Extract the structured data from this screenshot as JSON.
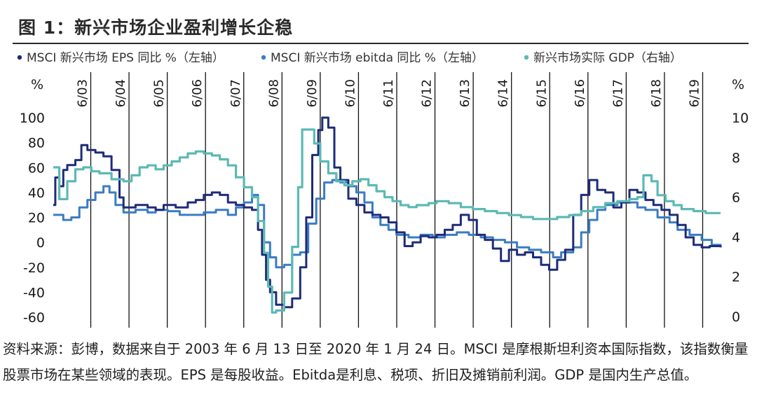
{
  "title": "图 1：新兴市场企业盈利增长企稳",
  "caption": "资料来源：彭博，数据来自于 2003 年 6 月 13 日至 2020 年 1 月 24 日。MSCI 是摩根斯坦利资本国际指数，该指数衡量股票市场在某些领域的表现。EPS 是每股收益。Ebitda是利息、税项、折旧及摊销前利润。GDP 是国内生产总值。",
  "chart_data": {
    "type": "line",
    "title": "图 1：新兴市场企业盈利增长企稳",
    "left_axis": {
      "unit": "%",
      "ticks": [
        100,
        80,
        60,
        40,
        20,
        0,
        -20,
        -40,
        -60
      ],
      "range": [
        -60,
        100
      ]
    },
    "right_axis": {
      "unit": "%",
      "ticks": [
        10,
        8,
        6,
        4,
        2,
        0
      ],
      "range": [
        0,
        10
      ]
    },
    "period_labels": [
      "6/03",
      "6/04",
      "6/05",
      "6/06",
      "6/07",
      "6/08",
      "6/09",
      "6/10",
      "6/11",
      "6/12",
      "6/13",
      "6/14",
      "6/15",
      "6/16",
      "6/17",
      "6/18",
      "6/19"
    ],
    "x_range": [
      2003.45,
      2020.07
    ],
    "series": [
      {
        "name": "MSCI 新兴市场 EPS 同比 %（左轴）",
        "axis": "left",
        "color": "#1e2c78",
        "points": [
          [
            2003.45,
            30
          ],
          [
            2003.5,
            52
          ],
          [
            2003.6,
            45
          ],
          [
            2003.7,
            58
          ],
          [
            2003.8,
            62
          ],
          [
            2004.0,
            66
          ],
          [
            2004.15,
            78
          ],
          [
            2004.3,
            74
          ],
          [
            2004.5,
            72
          ],
          [
            2004.7,
            69
          ],
          [
            2004.9,
            58
          ],
          [
            2005.1,
            36
          ],
          [
            2005.2,
            28
          ],
          [
            2005.5,
            30
          ],
          [
            2005.8,
            28
          ],
          [
            2006.0,
            26
          ],
          [
            2006.2,
            30
          ],
          [
            2006.5,
            28
          ],
          [
            2006.8,
            32
          ],
          [
            2007.0,
            34
          ],
          [
            2007.2,
            38
          ],
          [
            2007.4,
            40
          ],
          [
            2007.6,
            38
          ],
          [
            2007.8,
            32
          ],
          [
            2008.0,
            30
          ],
          [
            2008.2,
            28
          ],
          [
            2008.4,
            26
          ],
          [
            2008.55,
            10
          ],
          [
            2008.65,
            -10
          ],
          [
            2008.75,
            -30
          ],
          [
            2008.85,
            -40
          ],
          [
            2009.0,
            -50
          ],
          [
            2009.2,
            -52
          ],
          [
            2009.4,
            -45
          ],
          [
            2009.6,
            -20
          ],
          [
            2009.75,
            20
          ],
          [
            2009.9,
            70
          ],
          [
            2010.05,
            90
          ],
          [
            2010.15,
            100
          ],
          [
            2010.3,
            92
          ],
          [
            2010.45,
            60
          ],
          [
            2010.6,
            50
          ],
          [
            2010.8,
            35
          ],
          [
            2011.0,
            30
          ],
          [
            2011.2,
            24
          ],
          [
            2011.4,
            22
          ],
          [
            2011.6,
            20
          ],
          [
            2011.8,
            16
          ],
          [
            2012.0,
            8
          ],
          [
            2012.2,
            -3
          ],
          [
            2012.4,
            0
          ],
          [
            2012.6,
            5
          ],
          [
            2012.8,
            4
          ],
          [
            2013.0,
            6
          ],
          [
            2013.2,
            10
          ],
          [
            2013.4,
            14
          ],
          [
            2013.6,
            22
          ],
          [
            2013.8,
            18
          ],
          [
            2014.0,
            6
          ],
          [
            2014.2,
            2
          ],
          [
            2014.4,
            -5
          ],
          [
            2014.6,
            -15
          ],
          [
            2014.8,
            -6
          ],
          [
            2015.0,
            -10
          ],
          [
            2015.2,
            -8
          ],
          [
            2015.4,
            -12
          ],
          [
            2015.6,
            -18
          ],
          [
            2015.8,
            -22
          ],
          [
            2016.0,
            -14
          ],
          [
            2016.2,
            -6
          ],
          [
            2016.4,
            22
          ],
          [
            2016.6,
            38
          ],
          [
            2016.8,
            50
          ],
          [
            2017.0,
            42
          ],
          [
            2017.2,
            40
          ],
          [
            2017.4,
            28
          ],
          [
            2017.6,
            32
          ],
          [
            2017.8,
            42
          ],
          [
            2018.0,
            40
          ],
          [
            2018.2,
            34
          ],
          [
            2018.4,
            30
          ],
          [
            2018.6,
            26
          ],
          [
            2018.8,
            22
          ],
          [
            2019.0,
            14
          ],
          [
            2019.2,
            4
          ],
          [
            2019.4,
            -2
          ],
          [
            2019.6,
            -4
          ],
          [
            2019.8,
            -3
          ],
          [
            2020.07,
            -4
          ]
        ]
      },
      {
        "name": "MSCI 新兴市场 ebitda 同比 %（左轴）",
        "axis": "left",
        "color": "#3b7cc2",
        "points": [
          [
            2003.45,
            22
          ],
          [
            2003.7,
            18
          ],
          [
            2003.9,
            20
          ],
          [
            2004.1,
            28
          ],
          [
            2004.3,
            34
          ],
          [
            2004.5,
            40
          ],
          [
            2004.7,
            45
          ],
          [
            2004.85,
            40
          ],
          [
            2005.0,
            30
          ],
          [
            2005.2,
            24
          ],
          [
            2005.5,
            26
          ],
          [
            2005.8,
            24
          ],
          [
            2006.0,
            26
          ],
          [
            2006.3,
            25
          ],
          [
            2006.6,
            22
          ],
          [
            2006.9,
            22
          ],
          [
            2007.2,
            24
          ],
          [
            2007.5,
            26
          ],
          [
            2007.8,
            22
          ],
          [
            2008.0,
            28
          ],
          [
            2008.2,
            32
          ],
          [
            2008.4,
            38
          ],
          [
            2008.55,
            30
          ],
          [
            2008.7,
            0
          ],
          [
            2008.85,
            -12
          ],
          [
            2009.0,
            -20
          ],
          [
            2009.2,
            -18
          ],
          [
            2009.4,
            -10
          ],
          [
            2009.6,
            -8
          ],
          [
            2009.8,
            15
          ],
          [
            2010.0,
            35
          ],
          [
            2010.2,
            48
          ],
          [
            2010.4,
            50
          ],
          [
            2010.6,
            48
          ],
          [
            2010.8,
            45
          ],
          [
            2011.0,
            40
          ],
          [
            2011.2,
            32
          ],
          [
            2011.4,
            20
          ],
          [
            2011.6,
            14
          ],
          [
            2011.8,
            10
          ],
          [
            2012.0,
            6
          ],
          [
            2012.3,
            4
          ],
          [
            2012.6,
            6
          ],
          [
            2012.9,
            4
          ],
          [
            2013.2,
            6
          ],
          [
            2013.5,
            8
          ],
          [
            2013.8,
            6
          ],
          [
            2014.1,
            4
          ],
          [
            2014.4,
            2
          ],
          [
            2014.7,
            0
          ],
          [
            2015.0,
            -4
          ],
          [
            2015.3,
            -6
          ],
          [
            2015.6,
            -8
          ],
          [
            2015.9,
            -12
          ],
          [
            2016.1,
            -8
          ],
          [
            2016.4,
            -4
          ],
          [
            2016.6,
            8
          ],
          [
            2016.8,
            18
          ],
          [
            2017.0,
            26
          ],
          [
            2017.2,
            30
          ],
          [
            2017.5,
            32
          ],
          [
            2017.8,
            32
          ],
          [
            2018.0,
            28
          ],
          [
            2018.2,
            26
          ],
          [
            2018.5,
            20
          ],
          [
            2018.8,
            16
          ],
          [
            2019.0,
            10
          ],
          [
            2019.3,
            6
          ],
          [
            2019.6,
            2
          ],
          [
            2019.85,
            -2
          ],
          [
            2020.07,
            -4
          ]
        ]
      },
      {
        "name": "新兴市场实际 GDP（右轴）",
        "axis": "right",
        "color": "#5cb9b4",
        "points": [
          [
            2003.45,
            7.5
          ],
          [
            2003.6,
            5.9
          ],
          [
            2003.8,
            6.8
          ],
          [
            2004.0,
            7.4
          ],
          [
            2004.2,
            7.5
          ],
          [
            2004.4,
            7.3
          ],
          [
            2004.6,
            7.2
          ],
          [
            2004.9,
            6.9
          ],
          [
            2005.2,
            6.8
          ],
          [
            2005.4,
            7.1
          ],
          [
            2005.6,
            7.5
          ],
          [
            2005.8,
            7.6
          ],
          [
            2006.0,
            7.4
          ],
          [
            2006.2,
            7.6
          ],
          [
            2006.4,
            7.8
          ],
          [
            2006.6,
            8.0
          ],
          [
            2006.8,
            8.2
          ],
          [
            2007.0,
            8.3
          ],
          [
            2007.2,
            8.2
          ],
          [
            2007.4,
            8.1
          ],
          [
            2007.6,
            7.9
          ],
          [
            2007.8,
            7.6
          ],
          [
            2008.0,
            7.0
          ],
          [
            2008.2,
            6.5
          ],
          [
            2008.4,
            6.0
          ],
          [
            2008.55,
            4.8
          ],
          [
            2008.7,
            3.2
          ],
          [
            2008.8,
            1.5
          ],
          [
            2008.9,
            0.2
          ],
          [
            2009.0,
            0.3
          ],
          [
            2009.2,
            1.2
          ],
          [
            2009.4,
            3.5
          ],
          [
            2009.55,
            6.5
          ],
          [
            2009.65,
            9.4
          ],
          [
            2009.8,
            9.4
          ],
          [
            2009.95,
            8.7
          ],
          [
            2010.1,
            7.8
          ],
          [
            2010.3,
            7.2
          ],
          [
            2010.5,
            6.8
          ],
          [
            2010.7,
            6.6
          ],
          [
            2010.9,
            6.8
          ],
          [
            2011.1,
            6.9
          ],
          [
            2011.3,
            6.6
          ],
          [
            2011.5,
            6.3
          ],
          [
            2011.7,
            6.0
          ],
          [
            2011.9,
            5.8
          ],
          [
            2012.1,
            5.6
          ],
          [
            2012.3,
            5.5
          ],
          [
            2012.5,
            5.6
          ],
          [
            2012.8,
            5.7
          ],
          [
            2013.0,
            5.8
          ],
          [
            2013.3,
            5.7
          ],
          [
            2013.6,
            5.5
          ],
          [
            2013.9,
            5.4
          ],
          [
            2014.2,
            5.3
          ],
          [
            2014.5,
            5.2
          ],
          [
            2014.8,
            5.1
          ],
          [
            2015.1,
            5.0
          ],
          [
            2015.4,
            4.9
          ],
          [
            2015.7,
            4.9
          ],
          [
            2016.0,
            5.0
          ],
          [
            2016.3,
            5.1
          ],
          [
            2016.6,
            5.3
          ],
          [
            2016.9,
            5.5
          ],
          [
            2017.2,
            5.7
          ],
          [
            2017.5,
            5.8
          ],
          [
            2017.8,
            5.9
          ],
          [
            2018.0,
            6.0
          ],
          [
            2018.15,
            7.1
          ],
          [
            2018.35,
            6.8
          ],
          [
            2018.5,
            6.1
          ],
          [
            2018.7,
            5.8
          ],
          [
            2018.9,
            5.6
          ],
          [
            2019.1,
            5.4
          ],
          [
            2019.4,
            5.3
          ],
          [
            2019.7,
            5.2
          ],
          [
            2020.07,
            5.2
          ]
        ]
      }
    ]
  }
}
